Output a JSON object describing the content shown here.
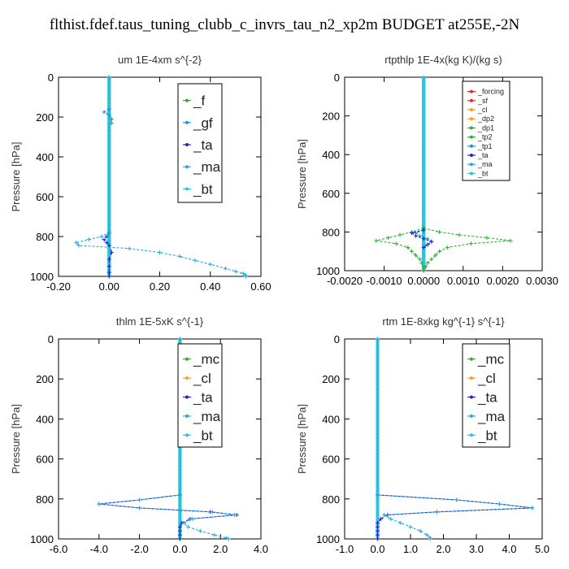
{
  "figure": {
    "title": "flthist.fdef.taus_tuning_clubb_c_invrs_tau_n2_xp2m  BUDGET at255E,-2N"
  },
  "colors": {
    "forcing": "#e8262a",
    "sf": "#e8262a",
    "cl": "#f2a31b",
    "dp2": "#f2a31b",
    "dp1": "#2eae38",
    "tp2": "#2eae38",
    "tp1": "#1f8fe0",
    "ta": "#2323c8",
    "ma": "#27a7df",
    "bt": "#22c7e0",
    "mc": "#2eae38",
    "f": "#2eae38",
    "gf": "#1f8fe0"
  },
  "chart_data": [
    {
      "id": "um",
      "type": "line",
      "title": "um   1E-4xm s^{-2}",
      "ylabel": "Pressure [hPa]",
      "xlim": [
        -0.2,
        0.6
      ],
      "ylim": [
        1000,
        0
      ],
      "x_ticks": [
        "-0.20",
        "0.00",
        "0.20",
        "0.40",
        "0.60"
      ],
      "y_ticks": [
        "0",
        "200",
        "400",
        "600",
        "800",
        "1000"
      ],
      "legend": {
        "placement": "top-right",
        "entries": [
          "_f",
          "_gf",
          "_ta",
          "_ma",
          "_bt"
        ]
      },
      "series": [
        {
          "name": "_f",
          "color_key": "f",
          "y": [
            0,
            1000
          ],
          "x": [
            0.0,
            0.0
          ]
        },
        {
          "name": "_gf",
          "color_key": "gf",
          "y": [
            160,
            175,
            190,
            210,
            230
          ],
          "x": [
            0.0,
            -0.02,
            0.0,
            0.01,
            0.01
          ]
        },
        {
          "name": "_ta",
          "color_key": "ta",
          "y": [
            780,
            800,
            815,
            830,
            845,
            880,
            915,
            950,
            980,
            1000
          ],
          "x": [
            0.0,
            -0.01,
            -0.02,
            -0.01,
            0.0,
            0.01,
            0.0,
            0.0,
            0.0,
            0.0
          ]
        },
        {
          "name": "_ma",
          "color_key": "ma",
          "y": [
            0,
            780,
            800,
            815,
            830,
            845,
            860,
            880,
            900,
            920,
            940,
            960,
            975,
            985,
            995,
            1000
          ],
          "x": [
            0.0,
            0.0,
            -0.03,
            -0.08,
            -0.13,
            -0.12,
            0.08,
            0.2,
            0.28,
            0.34,
            0.4,
            0.46,
            0.5,
            0.53,
            0.54,
            0.54
          ]
        },
        {
          "name": "_bt",
          "color_key": "bt",
          "y": [
            0,
            1000
          ],
          "x": [
            0.0,
            0.0
          ]
        }
      ]
    },
    {
      "id": "rtpthlp",
      "type": "line",
      "title": "rtpthlp   1E-4x(kg K)/(kg s)",
      "ylabel": "Pressure [hPa]",
      "xlim": [
        -0.002,
        0.003
      ],
      "ylim": [
        1000,
        0
      ],
      "x_ticks": [
        "-0.0020",
        "-0.0010",
        "0.0000",
        "0.0010",
        "0.0020",
        "0.0030"
      ],
      "y_ticks": [
        "0",
        "200",
        "400",
        "600",
        "800",
        "1000"
      ],
      "legend": {
        "placement": "top-right",
        "entries": [
          "_forcing",
          "_sf",
          "_cl",
          "_dp2",
          "_dp1",
          "_tp2",
          "_tp1",
          "_ta",
          "_ma",
          "_bt"
        ]
      },
      "series": [
        {
          "name": "_forcing",
          "color_key": "forcing",
          "y": [
            0,
            1000
          ],
          "x": [
            0.0,
            0.0
          ]
        },
        {
          "name": "_sf",
          "color_key": "sf",
          "y": [
            0,
            1000
          ],
          "x": [
            0.0,
            0.0
          ]
        },
        {
          "name": "_cl",
          "color_key": "cl",
          "y": [
            0,
            1000
          ],
          "x": [
            0.0,
            0.0
          ]
        },
        {
          "name": "_dp2",
          "color_key": "dp2",
          "y": [
            0,
            1000
          ],
          "x": [
            0.0,
            0.0
          ]
        },
        {
          "name": "_dp1",
          "color_key": "dp1",
          "y": [
            780,
            800,
            815,
            830,
            845,
            860,
            880,
            900,
            920,
            940,
            960,
            980,
            1000
          ],
          "x": [
            0.0,
            0.0004,
            0.0009,
            0.0016,
            0.0022,
            0.0012,
            0.0006,
            0.0004,
            0.0003,
            0.0002,
            0.0001,
            5e-05,
            0.0
          ]
        },
        {
          "name": "_tp2",
          "color_key": "tp2",
          "y": [
            780,
            800,
            815,
            830,
            845,
            860,
            880,
            900,
            920,
            940,
            960,
            980,
            1000
          ],
          "x": [
            0.0,
            -0.0003,
            -0.0006,
            -0.0009,
            -0.0012,
            -0.0007,
            -0.0004,
            -0.0003,
            -0.0002,
            -0.0001,
            -5e-05,
            0.0,
            0.0
          ]
        },
        {
          "name": "_tp1",
          "color_key": "tp1",
          "y": [
            790,
            805,
            820,
            835,
            850,
            865,
            880
          ],
          "x": [
            0.0,
            -0.0002,
            -0.0001,
            0.0001,
            0.0002,
            0.0001,
            0.0
          ]
        },
        {
          "name": "_ta",
          "color_key": "ta",
          "y": [
            790,
            805,
            820,
            835,
            850,
            865,
            880
          ],
          "x": [
            0.0,
            -0.0003,
            -0.0002,
            0.0,
            0.0002,
            0.0001,
            0.0
          ]
        },
        {
          "name": "_ma",
          "color_key": "ma",
          "y": [
            0,
            1000
          ],
          "x": [
            0.0,
            0.0
          ]
        },
        {
          "name": "_bt",
          "color_key": "bt",
          "y": [
            0,
            1000
          ],
          "x": [
            0.0,
            0.0
          ]
        }
      ]
    },
    {
      "id": "thlm",
      "type": "line",
      "title": "thlm   1E-5xK s^{-1}",
      "ylabel": "Pressure [hPa]",
      "xlim": [
        -6.0,
        4.0
      ],
      "ylim": [
        1000,
        0
      ],
      "x_ticks": [
        "-6.0",
        "-4.0",
        "-2.0",
        "0.0",
        "2.0",
        "4.0"
      ],
      "y_ticks": [
        "0",
        "200",
        "400",
        "600",
        "800",
        "1000"
      ],
      "legend": {
        "placement": "top-right",
        "entries": [
          "_mc",
          "_cl",
          "_ta",
          "_ma",
          "_bt"
        ]
      },
      "series": [
        {
          "name": "_mc",
          "color_key": "mc",
          "y": [
            0,
            1000
          ],
          "x": [
            0.0,
            0.0
          ]
        },
        {
          "name": "_cl",
          "color_key": "cl",
          "y": [
            0,
            1000
          ],
          "x": [
            0.0,
            0.0
          ]
        },
        {
          "name": "_ta",
          "color_key": "ta",
          "y": [
            780,
            805,
            825,
            845,
            865,
            880,
            900,
            920,
            940,
            960,
            980,
            1000
          ],
          "x": [
            0.0,
            -2.0,
            -4.0,
            -2.0,
            1.5,
            2.8,
            0.5,
            0.1,
            0.0,
            0.0,
            0.0,
            0.0
          ]
        },
        {
          "name": "_ma",
          "color_key": "ma",
          "y": [
            0,
            780,
            805,
            825,
            845,
            865,
            880,
            900,
            920,
            940,
            960,
            980,
            995,
            1000
          ],
          "x": [
            0.0,
            0.0,
            -2.0,
            -4.0,
            -2.0,
            1.6,
            2.7,
            0.6,
            0.2,
            0.4,
            1.0,
            1.7,
            2.3,
            2.4
          ]
        },
        {
          "name": "_bt",
          "color_key": "bt",
          "y": [
            0,
            1000
          ],
          "x": [
            0.0,
            0.0
          ]
        }
      ]
    },
    {
      "id": "rtm",
      "type": "line",
      "title": "rtm   1E-8xkg kg^{-1} s^{-1}",
      "ylabel": "Pressure [hPa]",
      "xlim": [
        -1.0,
        5.0
      ],
      "ylim": [
        1000,
        0
      ],
      "x_ticks": [
        "-1.0",
        "0.0",
        "1.0",
        "2.0",
        "3.0",
        "4.0",
        "5.0"
      ],
      "y_ticks": [
        "0",
        "200",
        "400",
        "600",
        "800",
        "1000"
      ],
      "legend": {
        "placement": "top-right",
        "entries": [
          "_mc",
          "_cl",
          "_ta",
          "_ma",
          "_bt"
        ]
      },
      "series": [
        {
          "name": "_mc",
          "color_key": "mc",
          "y": [
            0,
            1000
          ],
          "x": [
            0.0,
            0.0
          ]
        },
        {
          "name": "_cl",
          "color_key": "cl",
          "y": [
            0,
            1000
          ],
          "x": [
            0.0,
            0.0
          ]
        },
        {
          "name": "_ta",
          "color_key": "ta",
          "y": [
            780,
            805,
            825,
            845,
            865,
            880,
            900,
            920,
            940,
            960,
            980,
            1000
          ],
          "x": [
            0.0,
            2.4,
            3.7,
            4.7,
            1.8,
            0.3,
            0.1,
            0.0,
            0.0,
            0.0,
            0.0,
            0.0
          ]
        },
        {
          "name": "_ma",
          "color_key": "ma",
          "y": [
            0,
            780,
            805,
            825,
            845,
            865,
            880,
            900,
            920,
            940,
            960,
            980,
            995,
            1000
          ],
          "x": [
            0.0,
            0.0,
            2.4,
            3.7,
            4.7,
            1.8,
            0.2,
            0.4,
            0.7,
            1.0,
            1.3,
            1.5,
            1.6,
            1.6
          ]
        },
        {
          "name": "_bt",
          "color_key": "bt",
          "y": [
            0,
            1000
          ],
          "x": [
            0.0,
            0.0
          ]
        }
      ]
    }
  ]
}
